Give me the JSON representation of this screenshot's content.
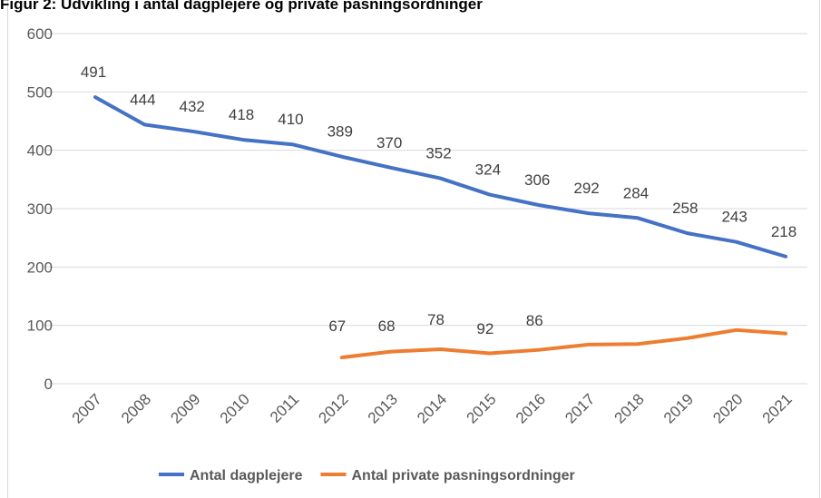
{
  "chart_data": {
    "type": "line",
    "title": "Figur 2: Udvikling i antal dagplejere og private pasningsordninger",
    "categories": [
      "2007",
      "2008",
      "2009",
      "2010",
      "2011",
      "2012",
      "2013",
      "2014",
      "2015",
      "2016",
      "2017",
      "2018",
      "2019",
      "2020",
      "2021"
    ],
    "series": [
      {
        "name": "Antal dagplejere",
        "color": "#4472c4",
        "values": [
          491,
          444,
          432,
          418,
          410,
          389,
          370,
          352,
          324,
          306,
          292,
          284,
          258,
          243,
          218
        ]
      },
      {
        "name": "Antal private pasningsordninger",
        "color": "#ed7d31",
        "values": [
          null,
          null,
          null,
          null,
          null,
          45,
          55,
          59,
          52,
          58,
          67,
          68,
          78,
          92,
          86
        ]
      }
    ],
    "ylim": [
      0,
      600
    ],
    "yticks": [
      0,
      100,
      200,
      300,
      400,
      500,
      600
    ],
    "grid": true,
    "legend": "bottom"
  }
}
